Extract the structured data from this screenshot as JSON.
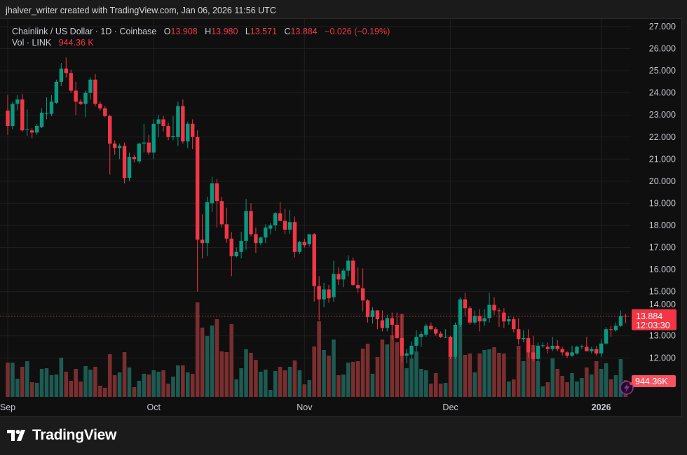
{
  "attribution": "jhalver_writer created with TradingView.com, Jan 06, 2026 11:56 UTC",
  "legend": {
    "symbol": "Chainlink / US Dollar · 1D · Coinbase",
    "o_label": "O",
    "o_value": "13.908",
    "h_label": "H",
    "h_value": "13.980",
    "l_label": "L",
    "l_value": "13.571",
    "c_label": "C",
    "c_value": "13.884",
    "change": "−0.026 (−0.19%)",
    "vol_label": "Vol · LINK",
    "vol_value": "944.36 K"
  },
  "last_price_label": {
    "price": "13.884",
    "countdown": "12:03:30"
  },
  "volume_label": "944.36K",
  "logo_text": "TradingView",
  "colors": {
    "up": "#089981",
    "down": "#f23645",
    "volume_up": "#1d5a52",
    "volume_down": "#7a2e2f",
    "background": "#0f0f0f",
    "grid": "#1f1f1f",
    "accent_icon": "#9c27b0"
  },
  "chart_data": {
    "type": "candlestick",
    "title": "Chainlink / US Dollar · 1D · Coinbase",
    "ylim": [
      11.3,
      27.35
    ],
    "y_ticks": [
      "27.000",
      "26.000",
      "25.000",
      "24.000",
      "23.000",
      "22.000",
      "21.000",
      "20.000",
      "19.000",
      "18.000",
      "17.000",
      "16.000",
      "15.000",
      "14.000",
      "13.000",
      "12.000"
    ],
    "x_ticks": [
      {
        "label": "Sep",
        "date": "2025-09-01"
      },
      {
        "label": "Oct",
        "date": "2025-10-01"
      },
      {
        "label": "Nov",
        "date": "2025-11-01"
      },
      {
        "label": "Dec",
        "date": "2025-12-01"
      },
      {
        "label": "2026",
        "date": "2026-01-01"
      }
    ],
    "grid": true,
    "volume_unit": "K",
    "dates": [
      "2025-09-01",
      "2025-09-02",
      "2025-09-03",
      "2025-09-04",
      "2025-09-05",
      "2025-09-06",
      "2025-09-07",
      "2025-09-08",
      "2025-09-09",
      "2025-09-10",
      "2025-09-11",
      "2025-09-12",
      "2025-09-13",
      "2025-09-14",
      "2025-09-15",
      "2025-09-16",
      "2025-09-17",
      "2025-09-18",
      "2025-09-19",
      "2025-09-20",
      "2025-09-21",
      "2025-09-22",
      "2025-09-23",
      "2025-09-24",
      "2025-09-25",
      "2025-09-26",
      "2025-09-27",
      "2025-09-28",
      "2025-09-29",
      "2025-09-30",
      "2025-10-01",
      "2025-10-02",
      "2025-10-03",
      "2025-10-04",
      "2025-10-05",
      "2025-10-06",
      "2025-10-07",
      "2025-10-08",
      "2025-10-09",
      "2025-10-10",
      "2025-10-11",
      "2025-10-12",
      "2025-10-13",
      "2025-10-14",
      "2025-10-15",
      "2025-10-16",
      "2025-10-17",
      "2025-10-18",
      "2025-10-19",
      "2025-10-20",
      "2025-10-21",
      "2025-10-22",
      "2025-10-23",
      "2025-10-24",
      "2025-10-25",
      "2025-10-26",
      "2025-10-27",
      "2025-10-28",
      "2025-10-29",
      "2025-10-30",
      "2025-10-31",
      "2025-11-01",
      "2025-11-02",
      "2025-11-03",
      "2025-11-04",
      "2025-11-05",
      "2025-11-06",
      "2025-11-07",
      "2025-11-08",
      "2025-11-09",
      "2025-11-10",
      "2025-11-11",
      "2025-11-12",
      "2025-11-13",
      "2025-11-14",
      "2025-11-15",
      "2025-11-16",
      "2025-11-17",
      "2025-11-18",
      "2025-11-19",
      "2025-11-20",
      "2025-11-21",
      "2025-11-22",
      "2025-11-23",
      "2025-11-24",
      "2025-11-25",
      "2025-11-26",
      "2025-11-27",
      "2025-11-28",
      "2025-11-29",
      "2025-11-30",
      "2025-12-01",
      "2025-12-02",
      "2025-12-03",
      "2025-12-04",
      "2025-12-05",
      "2025-12-06",
      "2025-12-07",
      "2025-12-08",
      "2025-12-09",
      "2025-12-10",
      "2025-12-11",
      "2025-12-12",
      "2025-12-13",
      "2025-12-14",
      "2025-12-15",
      "2025-12-16",
      "2025-12-17",
      "2025-12-18",
      "2025-12-19",
      "2025-12-20",
      "2025-12-21",
      "2025-12-22",
      "2025-12-23",
      "2025-12-24",
      "2025-12-25",
      "2025-12-26",
      "2025-12-27",
      "2025-12-28",
      "2025-12-29",
      "2025-12-30",
      "2025-12-31",
      "2026-01-01",
      "2026-01-02",
      "2026-01-03",
      "2026-01-04",
      "2026-01-05",
      "2026-01-06"
    ],
    "ohlc": [
      [
        23.2,
        23.9,
        22.1,
        22.5
      ],
      [
        22.5,
        23.6,
        22.35,
        23.5
      ],
      [
        23.5,
        23.9,
        23.2,
        23.7
      ],
      [
        23.7,
        23.95,
        22.25,
        22.3
      ],
      [
        22.35,
        23.25,
        22.05,
        22.37
      ],
      [
        22.3,
        22.4,
        21.95,
        22.2
      ],
      [
        22.2,
        22.6,
        22.1,
        22.5
      ],
      [
        22.45,
        23.3,
        22.4,
        23.1
      ],
      [
        23.05,
        23.8,
        22.8,
        23.08
      ],
      [
        23.05,
        23.9,
        22.95,
        23.6
      ],
      [
        23.55,
        24.6,
        23.5,
        24.5
      ],
      [
        24.5,
        25.35,
        24.3,
        25.1
      ],
      [
        25.1,
        25.6,
        24.7,
        24.9
      ],
      [
        24.9,
        25.05,
        24.0,
        24.1
      ],
      [
        24.1,
        24.5,
        23.0,
        23.6
      ],
      [
        23.6,
        23.7,
        23.45,
        23.5
      ],
      [
        23.5,
        24.1,
        22.9,
        24.0
      ],
      [
        24.0,
        24.7,
        23.7,
        24.6
      ],
      [
        24.6,
        24.85,
        23.4,
        23.5
      ],
      [
        23.5,
        23.6,
        23.2,
        23.3
      ],
      [
        23.3,
        23.4,
        22.9,
        22.95
      ],
      [
        22.95,
        23.0,
        20.3,
        21.7
      ],
      [
        21.7,
        21.85,
        21.2,
        21.5
      ],
      [
        21.5,
        21.7,
        21.0,
        21.6
      ],
      [
        21.6,
        21.75,
        19.9,
        20.15
      ],
      [
        20.15,
        21.3,
        20.0,
        21.1
      ],
      [
        21.1,
        21.2,
        20.85,
        21.0
      ],
      [
        20.9,
        21.75,
        20.8,
        21.7
      ],
      [
        21.7,
        22.6,
        21.3,
        21.75
      ],
      [
        21.75,
        22.1,
        21.2,
        21.3
      ],
      [
        21.3,
        22.8,
        21.0,
        22.6
      ],
      [
        22.6,
        23.0,
        22.0,
        22.8
      ],
      [
        22.8,
        22.95,
        22.25,
        22.5
      ],
      [
        22.5,
        22.65,
        21.85,
        22.0
      ],
      [
        22.0,
        22.95,
        21.85,
        22.05
      ],
      [
        22.0,
        23.6,
        21.6,
        23.4
      ],
      [
        23.4,
        23.7,
        21.7,
        21.8
      ],
      [
        21.8,
        22.7,
        21.5,
        22.6
      ],
      [
        22.6,
        22.8,
        21.45,
        22.0
      ],
      [
        22.0,
        22.3,
        15.0,
        17.35
      ],
      [
        17.35,
        18.5,
        16.5,
        17.2
      ],
      [
        17.2,
        19.3,
        16.6,
        19.05
      ],
      [
        19.0,
        20.2,
        18.6,
        19.9
      ],
      [
        19.9,
        20.1,
        17.9,
        19.1
      ],
      [
        19.1,
        19.3,
        17.9,
        18.05
      ],
      [
        18.05,
        18.8,
        17.2,
        17.4
      ],
      [
        17.4,
        17.7,
        15.7,
        16.6
      ],
      [
        16.6,
        17.0,
        16.55,
        16.8
      ],
      [
        16.8,
        17.7,
        16.5,
        17.3
      ],
      [
        17.3,
        19.2,
        16.9,
        18.65
      ],
      [
        18.65,
        19.0,
        17.5,
        17.6
      ],
      [
        17.6,
        17.9,
        16.75,
        17.2
      ],
      [
        17.2,
        17.5,
        17.1,
        17.45
      ],
      [
        17.45,
        18.05,
        17.2,
        17.9
      ],
      [
        17.85,
        18.1,
        17.6,
        18.0
      ],
      [
        18.0,
        18.6,
        17.75,
        18.55
      ],
      [
        18.55,
        19.05,
        18.2,
        18.2
      ],
      [
        18.2,
        18.75,
        17.6,
        17.8
      ],
      [
        17.8,
        18.7,
        17.6,
        18.15
      ],
      [
        18.15,
        18.4,
        16.55,
        16.8
      ],
      [
        16.8,
        17.3,
        16.7,
        17.25
      ],
      [
        17.25,
        17.4,
        17.0,
        17.1
      ],
      [
        17.15,
        17.6,
        17.05,
        17.6
      ],
      [
        17.6,
        17.65,
        14.55,
        15.25
      ],
      [
        15.25,
        15.7,
        13.7,
        14.65
      ],
      [
        14.65,
        15.4,
        14.3,
        15.1
      ],
      [
        15.1,
        15.3,
        14.5,
        14.7
      ],
      [
        14.75,
        16.4,
        14.55,
        15.8
      ],
      [
        15.8,
        16.1,
        15.3,
        15.55
      ],
      [
        15.55,
        16.05,
        15.2,
        15.95
      ],
      [
        15.95,
        16.65,
        15.7,
        16.4
      ],
      [
        16.4,
        16.55,
        15.25,
        15.3
      ],
      [
        15.3,
        16.1,
        14.95,
        15.15
      ],
      [
        15.15,
        16.05,
        14.1,
        14.6
      ],
      [
        14.6,
        14.65,
        13.6,
        13.85
      ],
      [
        13.85,
        14.3,
        13.55,
        14.15
      ],
      [
        14.15,
        14.15,
        13.3,
        13.75
      ],
      [
        13.7,
        14.15,
        13.2,
        13.35
      ],
      [
        13.35,
        13.95,
        13.2,
        13.8
      ],
      [
        13.8,
        14.05,
        12.85,
        13.5
      ],
      [
        13.5,
        14.05,
        12.85,
        12.9
      ],
      [
        12.9,
        14.0,
        11.8,
        12.1
      ],
      [
        12.1,
        12.4,
        11.75,
        12.2
      ],
      [
        12.15,
        12.75,
        12.0,
        12.55
      ],
      [
        12.55,
        13.25,
        12.3,
        12.95
      ],
      [
        12.95,
        13.2,
        12.5,
        13.08
      ],
      [
        13.05,
        13.55,
        12.95,
        13.45
      ],
      [
        13.45,
        13.6,
        13.25,
        13.3
      ],
      [
        13.3,
        13.4,
        13.0,
        13.1
      ],
      [
        13.1,
        13.2,
        12.9,
        12.95
      ],
      [
        12.95,
        13.3,
        12.9,
        12.95
      ],
      [
        12.95,
        13.0,
        11.95,
        12.05
      ],
      [
        12.05,
        13.6,
        11.95,
        13.5
      ],
      [
        13.5,
        14.75,
        13.4,
        14.65
      ],
      [
        14.65,
        14.95,
        13.9,
        14.25
      ],
      [
        14.25,
        14.35,
        13.5,
        13.6
      ],
      [
        13.6,
        14.15,
        13.5,
        13.9
      ],
      [
        13.9,
        14.2,
        13.2,
        13.65
      ],
      [
        13.65,
        14.2,
        13.45,
        13.8
      ],
      [
        13.8,
        14.95,
        13.6,
        14.4
      ],
      [
        14.4,
        14.75,
        13.95,
        14.15
      ],
      [
        14.15,
        14.25,
        13.4,
        14.12
      ],
      [
        14.05,
        14.25,
        13.35,
        13.65
      ],
      [
        13.65,
        13.9,
        13.5,
        13.75
      ],
      [
        13.75,
        13.85,
        13.15,
        13.3
      ],
      [
        13.3,
        13.8,
        12.6,
        12.85
      ],
      [
        12.85,
        13.25,
        12.7,
        12.9
      ],
      [
        12.9,
        13.3,
        12.0,
        12.25
      ],
      [
        12.25,
        13.0,
        11.85,
        11.95
      ],
      [
        11.95,
        12.7,
        11.85,
        12.55
      ],
      [
        12.55,
        12.7,
        12.45,
        12.57
      ],
      [
        12.5,
        12.7,
        12.2,
        12.4
      ],
      [
        12.4,
        12.95,
        12.3,
        12.55
      ],
      [
        12.55,
        12.8,
        12.3,
        12.4
      ],
      [
        12.4,
        12.5,
        12.1,
        12.25
      ],
      [
        12.25,
        12.3,
        12.0,
        12.1
      ],
      [
        12.1,
        12.55,
        12.05,
        12.25
      ],
      [
        12.2,
        12.55,
        12.15,
        12.5
      ],
      [
        12.5,
        12.6,
        12.4,
        12.52
      ],
      [
        12.5,
        12.95,
        12.3,
        12.3
      ],
      [
        12.3,
        12.5,
        12.2,
        12.4
      ],
      [
        12.4,
        12.55,
        12.1,
        12.2
      ],
      [
        12.2,
        12.85,
        12.05,
        12.65
      ],
      [
        12.65,
        13.4,
        12.6,
        13.3
      ],
      [
        13.3,
        13.45,
        12.95,
        13.28
      ],
      [
        13.25,
        13.6,
        13.2,
        13.45
      ],
      [
        13.45,
        14.15,
        13.4,
        13.9
      ],
      [
        13.908,
        13.98,
        13.571,
        13.884
      ]
    ],
    "volume": [
      1928,
      1928,
      1023,
      1692,
      2007,
      826,
      787,
      1574,
      1613,
      1220,
      1259,
      2204,
      1417,
      905,
      1574,
      866,
      1731,
      1535,
      1692,
      630,
      512,
      2400,
      1220,
      1377,
      2518,
      1653,
      551,
      905,
      1299,
      1259,
      1495,
      1417,
      1495,
      748,
      1141,
      1771,
      1771,
      1377,
      1299,
      5312,
      3896,
      3423,
      4014,
      4368,
      2558,
      2518,
      4092,
      984,
      1613,
      2676,
      2479,
      2086,
      1417,
      1535,
      394,
      1456,
      1692,
      1495,
      1692,
      2046,
      1495,
      708,
      944,
      2833,
      4250,
      2636,
      2322,
      3227,
      1220,
      1259,
      1928,
      1968,
      2007,
      2715,
      2991,
      1299,
      2243,
      3227,
      2951,
      3463,
      3069,
      4643,
      1613,
      2164,
      2558,
      1574,
      1495,
      748,
      1338,
      748,
      787,
      3384,
      2282,
      4053,
      2361,
      2440,
      1377,
      2440,
      2636,
      2676,
      2794,
      2479,
      2440,
      866,
      984,
      2873,
      2007,
      2912,
      2912,
      2007,
      590,
      826,
      2164,
      1574,
      1181,
      826,
      1338,
      866,
      1062,
      1653,
      1259,
      2007,
      1574,
      1889,
      984,
      1220,
      2125,
      944.36
    ]
  }
}
